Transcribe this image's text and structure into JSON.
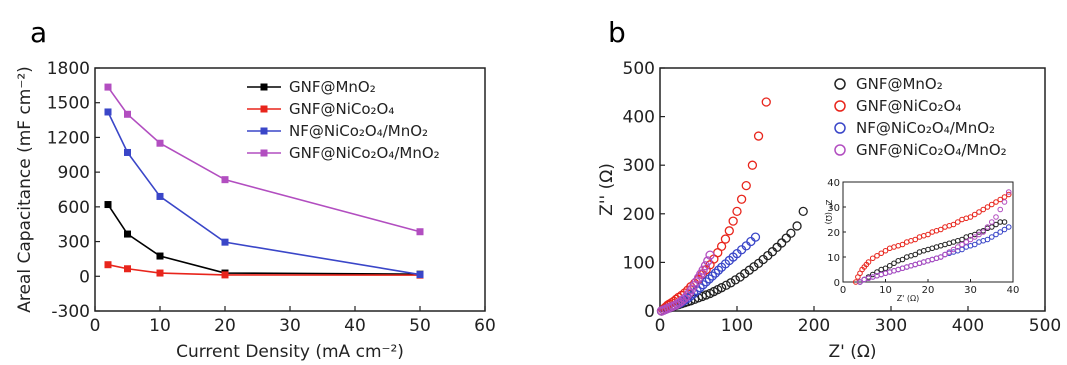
{
  "panels": [
    {
      "letter": "a"
    },
    {
      "letter": "b"
    }
  ],
  "chart_data": [
    {
      "type": "line",
      "panel": "a",
      "xlabel": "Current Density (mA cm⁻²)",
      "ylabel": "Areal Capacitance (mF cm⁻²)",
      "xlim": [
        0,
        60
      ],
      "ylim": [
        -300,
        1800
      ],
      "xticks": [
        0,
        10,
        20,
        30,
        40,
        50,
        60
      ],
      "yticks": [
        -300,
        0,
        300,
        600,
        900,
        1200,
        1500,
        1800
      ],
      "legend_position": "top-right",
      "x": [
        2,
        5,
        10,
        20,
        50
      ],
      "series": [
        {
          "name": "GNF@MnO₂",
          "color": "#000000",
          "values": [
            620,
            365,
            175,
            28,
            18
          ]
        },
        {
          "name": "GNF@NiCo₂O₄",
          "color": "#e8251c",
          "values": [
            100,
            65,
            28,
            12,
            10
          ]
        },
        {
          "name": "NF@NiCo₂O₄/MnO₂",
          "color": "#3a46c8",
          "values": [
            1420,
            1070,
            690,
            295,
            15
          ]
        },
        {
          "name": "GNF@NiCo₂O₄/MnO₂",
          "color": "#b24ec0",
          "values": [
            1635,
            1400,
            1150,
            835,
            385
          ]
        }
      ]
    },
    {
      "type": "scatter",
      "panel": "b",
      "xlabel": "Z' (Ω)",
      "ylabel": "Z'' (Ω)",
      "xlim": [
        0,
        500
      ],
      "ylim": [
        0,
        500
      ],
      "xticks": [
        0,
        100,
        200,
        300,
        400,
        500
      ],
      "yticks": [
        0,
        100,
        200,
        300,
        400,
        500
      ],
      "legend_position": "top-right",
      "series": [
        {
          "name": "GNF@MnO₂",
          "color": "#222222",
          "x": [
            2,
            5,
            8,
            11,
            14,
            17,
            20,
            24,
            28,
            32,
            36,
            40,
            45,
            50,
            55,
            60,
            65,
            70,
            75,
            80,
            86,
            92,
            98,
            104,
            110,
            116,
            122,
            128,
            134,
            140,
            146,
            152,
            158,
            164,
            170,
            178,
            186
          ],
          "y": [
            0,
            2,
            4,
            6,
            7,
            9,
            11,
            13,
            15,
            17,
            19,
            21,
            24,
            27,
            30,
            33,
            36,
            40,
            44,
            48,
            53,
            58,
            64,
            70,
            77,
            84,
            91,
            98,
            106,
            114,
            122,
            131,
            140,
            150,
            160,
            175,
            205
          ]
        },
        {
          "name": "GNF@NiCo₂O₄",
          "color": "#e8251c",
          "x": [
            2,
            4,
            6,
            8,
            10,
            12,
            15,
            18,
            21,
            24,
            28,
            32,
            36,
            40,
            45,
            50,
            55,
            60,
            65,
            70,
            75,
            80,
            85,
            90,
            95,
            100,
            106,
            112,
            120,
            128,
            138
          ],
          "y": [
            0,
            3,
            6,
            9,
            12,
            14,
            17,
            20,
            24,
            28,
            32,
            37,
            43,
            50,
            57,
            65,
            75,
            85,
            95,
            107,
            120,
            133,
            148,
            165,
            185,
            205,
            230,
            258,
            300,
            360,
            430
          ]
        },
        {
          "name": "NF@NiCo₂O₄/MnO₂",
          "color": "#3a46c8",
          "x": [
            2,
            5,
            8,
            11,
            14,
            17,
            20,
            23,
            26,
            29,
            32,
            36,
            40,
            44,
            48,
            52,
            56,
            60,
            64,
            68,
            72,
            76,
            80,
            85,
            90,
            95,
            100,
            106,
            112,
            118,
            124
          ],
          "y": [
            0,
            2,
            4,
            6,
            8,
            10,
            12,
            14,
            16,
            19,
            22,
            26,
            31,
            36,
            42,
            48,
            54,
            60,
            66,
            72,
            78,
            84,
            90,
            97,
            104,
            111,
            118,
            126,
            134,
            143,
            152
          ]
        },
        {
          "name": "GNF@NiCo₂O₄/MnO₂",
          "color": "#b24ec0",
          "x": [
            2,
            5,
            8,
            11,
            14,
            17,
            20,
            23,
            26,
            29,
            32,
            35,
            38,
            41,
            44,
            47,
            50,
            53,
            56,
            59,
            62,
            65
          ],
          "y": [
            0,
            2,
            4,
            6,
            8,
            10,
            12,
            15,
            18,
            22,
            26,
            31,
            37,
            44,
            52,
            60,
            68,
            76,
            84,
            93,
            103,
            115
          ]
        }
      ],
      "inset": {
        "xlim": [
          0,
          40
        ],
        "ylim": [
          0,
          40
        ],
        "xticks": [
          0,
          10,
          20,
          30,
          40
        ],
        "yticks": [
          0,
          10,
          20,
          30,
          40
        ],
        "xlabel": "Z' (Ω)",
        "ylabel": "Z'' (Ω)",
        "series": [
          {
            "name": "GNF@MnO₂",
            "color": "#222222",
            "x": [
              4,
              5,
              6,
              7,
              8,
              9,
              10,
              11,
              12,
              13,
              14,
              15,
              16,
              17,
              18,
              19,
              20,
              21,
              22,
              23,
              24,
              25,
              26,
              27,
              28,
              29,
              30,
              31,
              32,
              33,
              34,
              35,
              36,
              37,
              38
            ],
            "y": [
              0,
              1,
              2,
              3,
              4,
              5,
              5.5,
              6.5,
              7.5,
              8.5,
              9,
              10,
              10.5,
              11,
              12,
              12.5,
              13,
              13.5,
              14,
              14.5,
              15,
              15.5,
              16,
              16.5,
              17,
              18,
              18.5,
              19,
              20,
              20.5,
              21.5,
              22,
              23,
              24,
              24
            ]
          },
          {
            "name": "GNF@NiCo₂O₄",
            "color": "#e8251c",
            "x": [
              3,
              3.5,
              4,
              4.5,
              5,
              5.5,
              6,
              7,
              8,
              9,
              10,
              11,
              12,
              13,
              14,
              15,
              16,
              17,
              18,
              19,
              20,
              21,
              22,
              23,
              24,
              25,
              26,
              27,
              28,
              29,
              30,
              31,
              32,
              33,
              34,
              35,
              36,
              37,
              38,
              39
            ],
            "y": [
              0,
              2,
              3.5,
              5,
              6,
              7,
              8,
              9.5,
              10.5,
              11.5,
              12.5,
              13.5,
              14,
              14.5,
              15,
              16,
              16.5,
              17,
              18,
              18.5,
              19,
              20,
              20.5,
              21,
              22,
              22.5,
              23,
              24,
              25,
              25.5,
              26,
              27,
              28,
              29,
              30,
              31,
              32,
              33,
              34,
              35
            ]
          },
          {
            "name": "NF@NiCo₂O₄/MnO₂",
            "color": "#3a46c8",
            "x": [
              4,
              5,
              6,
              7,
              8,
              9,
              10,
              11,
              12,
              13,
              14,
              15,
              16,
              17,
              18,
              19,
              20,
              21,
              22,
              23,
              24,
              25,
              26,
              27,
              28,
              29,
              30,
              31,
              32,
              33,
              34,
              35,
              36,
              37,
              38,
              39
            ],
            "y": [
              0,
              1,
              1.5,
              2,
              2.5,
              3,
              3.5,
              4,
              4.5,
              5,
              5.5,
              6,
              6.5,
              7,
              7.5,
              8,
              8.5,
              9,
              9.5,
              10,
              11,
              11.5,
              12,
              12.5,
              13,
              14,
              14.5,
              15,
              16,
              16.5,
              17,
              18,
              19,
              20,
              21,
              22
            ]
          },
          {
            "name": "GNF@NiCo₂O₄/MnO₂",
            "color": "#b24ec0",
            "x": [
              4,
              5,
              6,
              7,
              8,
              9,
              10,
              11,
              12,
              13,
              14,
              15,
              16,
              17,
              18,
              19,
              20,
              21,
              22,
              23,
              24,
              25,
              26,
              27,
              28,
              29,
              30,
              31,
              32,
              33,
              34,
              35,
              36,
              37,
              38,
              39
            ],
            "y": [
              0,
              1,
              1.5,
              2,
              2.5,
              3,
              3.5,
              4,
              4.5,
              5,
              5.5,
              6,
              6.5,
              7,
              7.5,
              8,
              8.5,
              9,
              9.5,
              10,
              11,
              12,
              13,
              14,
              15,
              16,
              17,
              18,
              19,
              20,
              22,
              24,
              26,
              29,
              32,
              36
            ]
          }
        ]
      }
    }
  ]
}
